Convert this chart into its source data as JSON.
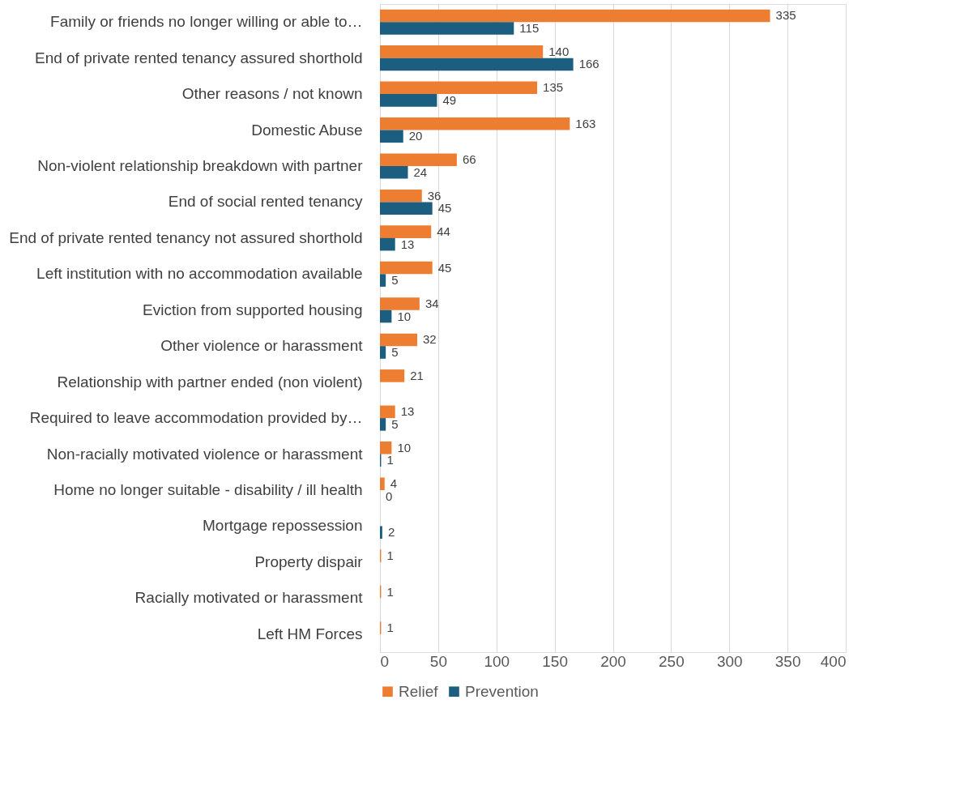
{
  "chart_data": {
    "type": "bar",
    "orientation": "horizontal",
    "categories": [
      "Family or friends no longer willing or able to…",
      "End of private rented tenancy  assured shorthold",
      "Other reasons / not known",
      "Domestic Abuse",
      "Non-violent relationship breakdown with partner",
      "End of social rented tenancy",
      "End of private rented tenancy  not assured shorthold",
      "Left institution with no accommodation available",
      "Eviction from supported housing",
      "Other violence or harassment",
      "Relationship with partner ended (non violent)",
      "Required to leave accommodation provided by…",
      "Non-racially motivated violence or harassment",
      "Home no longer suitable - disability / ill health",
      "Mortgage repossession",
      "Property dispair",
      "Racially motivated or harassment",
      "Left HM Forces"
    ],
    "series": [
      {
        "name": "Relief",
        "color": "#ed7d31",
        "values": [
          335,
          140,
          135,
          163,
          66,
          36,
          44,
          45,
          34,
          32,
          21,
          13,
          10,
          4,
          null,
          1,
          1,
          1
        ]
      },
      {
        "name": "Prevention",
        "color": "#1b5e7f",
        "values": [
          115,
          166,
          49,
          20,
          24,
          45,
          13,
          5,
          10,
          5,
          null,
          5,
          1,
          0,
          2,
          null,
          null,
          null
        ]
      }
    ],
    "xlim": [
      0,
      400
    ],
    "xticks": [
      0,
      50,
      100,
      150,
      200,
      250,
      300,
      350,
      400
    ],
    "grid": "x",
    "legend": "bottom",
    "data_labels": true
  }
}
